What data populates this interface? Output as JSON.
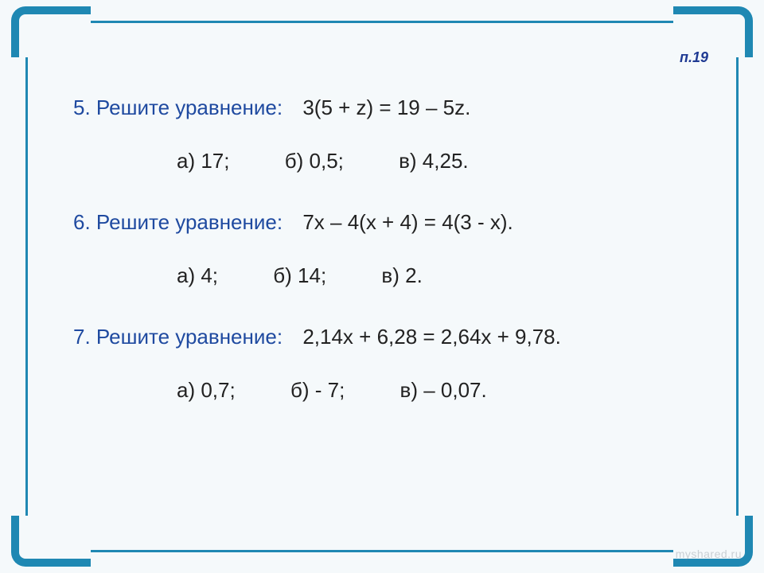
{
  "page_ref": "п.19",
  "colors": {
    "frame": "#1f88b3",
    "background": "#f5f9fb",
    "prompt": "#1f4aa0",
    "body_text": "#222222",
    "watermark": "rgba(120,130,140,0.35)"
  },
  "font": {
    "family": "Arial",
    "question_size_pt": 20,
    "pageref_size_pt": 13
  },
  "questions": [
    {
      "number": "5.",
      "prompt": "Решите уравнение:",
      "equation": "3(5 + z) = 19 – 5z.",
      "answers": {
        "a": "а) 17;",
        "b": "б) 0,5;",
        "c": "в) 4,25."
      }
    },
    {
      "number": "6.",
      "prompt": "Решите уравнение:",
      "equation": "7х – 4(х + 4) = 4(3 - х).",
      "answers": {
        "a": "а) 4;",
        "b": "б) 14;",
        "c": "в) 2."
      }
    },
    {
      "number": "7.",
      "prompt": "Решите уравнение:",
      "equation": "2,14х + 6,28 = 2,64х + 9,78.",
      "answers": {
        "a": "а) 0,7;",
        "b": "б) - 7;",
        "c": "в) – 0,07."
      }
    }
  ],
  "watermark": "myshared.ru"
}
